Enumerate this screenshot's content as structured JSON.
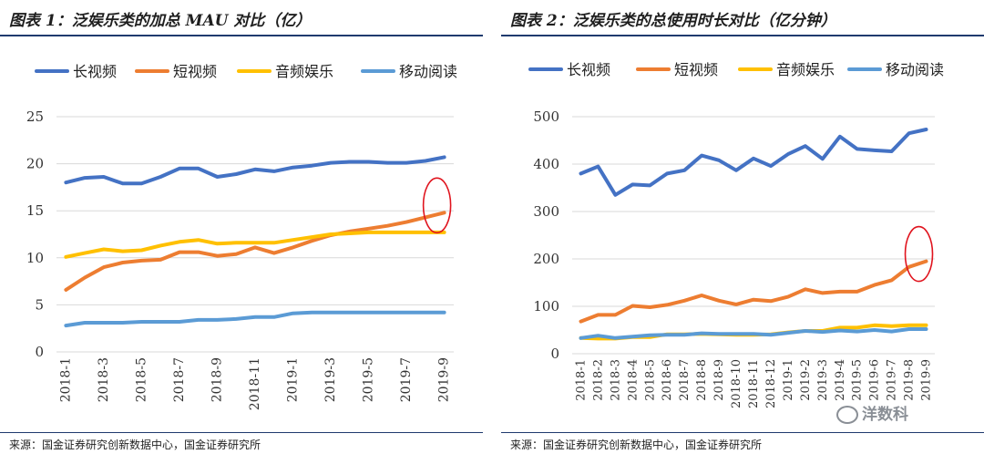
{
  "colors": {
    "long_video": "#4472C4",
    "short_video": "#ED7D31",
    "audio": "#FFC000",
    "reading": "#5B9BD5",
    "highlight": "#E0141E",
    "grid": "#d9d9d9",
    "rule": "#1f3a6e"
  },
  "source_text": "来源：国金证券研究创新数据中心，国金证券研究所",
  "watermark": {
    "text": "洋数科"
  },
  "chart_data": [
    {
      "type": "line",
      "title": "图表 1：泛娱乐类的加总 MAU 对比（亿）",
      "categories": [
        "2018-1",
        "2018-2",
        "2018-3",
        "2018-4",
        "2018-5",
        "2018-6",
        "2018-7",
        "2018-8",
        "2018-9",
        "2018-10",
        "2018-11",
        "2018-12",
        "2019-1",
        "2019-2",
        "2019-3",
        "2019-4",
        "2019-5",
        "2019-6",
        "2019-7",
        "2019-8",
        "2019-9"
      ],
      "tick_labels": [
        "2018-1",
        "",
        "2018-3",
        "",
        "2018-5",
        "",
        "2018-7",
        "",
        "2018-9",
        "",
        "2018-11",
        "",
        "2019-1",
        "",
        "2019-3",
        "",
        "2019-5",
        "",
        "2019-7",
        "",
        "2019-9"
      ],
      "ylim": [
        0,
        25
      ],
      "yticks": [
        0,
        5,
        10,
        15,
        20,
        25
      ],
      "grid": true,
      "legend": "top",
      "highlight_annotation": {
        "series": "短视频",
        "category": "2019-9",
        "shape": "ellipse"
      },
      "series": [
        {
          "name": "长视频",
          "color_key": "long_video",
          "values": [
            18.0,
            18.5,
            18.6,
            17.9,
            17.9,
            18.6,
            19.5,
            19.5,
            18.6,
            18.9,
            19.4,
            19.2,
            19.6,
            19.8,
            20.1,
            20.2,
            20.2,
            20.1,
            20.1,
            20.3,
            20.7
          ]
        },
        {
          "name": "短视频",
          "color_key": "short_video",
          "values": [
            6.6,
            7.9,
            9.0,
            9.5,
            9.7,
            9.8,
            10.6,
            10.6,
            10.2,
            10.4,
            11.1,
            10.5,
            11.1,
            11.8,
            12.4,
            12.8,
            13.1,
            13.4,
            13.8,
            14.3,
            14.8
          ]
        },
        {
          "name": "音频娱乐",
          "color_key": "audio",
          "values": [
            10.1,
            10.5,
            10.9,
            10.7,
            10.8,
            11.3,
            11.7,
            11.9,
            11.5,
            11.6,
            11.6,
            11.6,
            11.9,
            12.2,
            12.5,
            12.6,
            12.7,
            12.7,
            12.7,
            12.7,
            12.7
          ]
        },
        {
          "name": "移动阅读",
          "color_key": "reading",
          "values": [
            2.8,
            3.1,
            3.1,
            3.1,
            3.2,
            3.2,
            3.2,
            3.4,
            3.4,
            3.5,
            3.7,
            3.7,
            4.1,
            4.2,
            4.2,
            4.2,
            4.2,
            4.2,
            4.2,
            4.2,
            4.2
          ]
        }
      ]
    },
    {
      "type": "line",
      "title": "图表 2：泛娱乐类的总使用时长对比（亿分钟）",
      "categories": [
        "2018-1",
        "2018-2",
        "2018-3",
        "2018-4",
        "2018-5",
        "2018-6",
        "2018-7",
        "2018-8",
        "2018-9",
        "2018-10",
        "2018-11",
        "2018-12",
        "2019-1",
        "2019-2",
        "2019-3",
        "2019-4",
        "2019-5",
        "2019-6",
        "2019-7",
        "2019-8",
        "2019-9"
      ],
      "tick_labels": [
        "2018-1",
        "2018-2",
        "2018-3",
        "2018-4",
        "2018-5",
        "2018-6",
        "2018-7",
        "2018-8",
        "2018-9",
        "2018-10",
        "2018-11",
        "2018-12",
        "2019-1",
        "2019-2",
        "2019-3",
        "2019-4",
        "2019-5",
        "2019-6",
        "2019-7",
        "2019-8",
        "2019-9"
      ],
      "ylim": [
        0,
        500
      ],
      "yticks": [
        0,
        100,
        200,
        300,
        400,
        500
      ],
      "grid": true,
      "legend": "top",
      "highlight_annotation": {
        "series": "短视频",
        "category": "2019-9",
        "shape": "ellipse"
      },
      "series": [
        {
          "name": "长视频",
          "color_key": "long_video",
          "values": [
            380,
            395,
            335,
            357,
            355,
            380,
            387,
            418,
            408,
            387,
            412,
            396,
            421,
            438,
            411,
            458,
            432,
            429,
            427,
            465,
            473
          ]
        },
        {
          "name": "短视频",
          "color_key": "short_video",
          "values": [
            68,
            82,
            82,
            101,
            98,
            103,
            112,
            123,
            112,
            104,
            114,
            111,
            120,
            136,
            128,
            131,
            131,
            145,
            155,
            183,
            195
          ]
        },
        {
          "name": "音频娱乐",
          "color_key": "audio",
          "values": [
            33,
            32,
            32,
            35,
            35,
            41,
            41,
            42,
            41,
            40,
            40,
            41,
            45,
            48,
            48,
            55,
            55,
            60,
            58,
            60,
            60
          ]
        },
        {
          "name": "移动阅读",
          "color_key": "reading",
          "values": [
            33,
            38,
            33,
            36,
            39,
            40,
            40,
            43,
            42,
            42,
            42,
            40,
            44,
            48,
            46,
            49,
            47,
            50,
            47,
            52,
            52
          ]
        }
      ]
    }
  ]
}
